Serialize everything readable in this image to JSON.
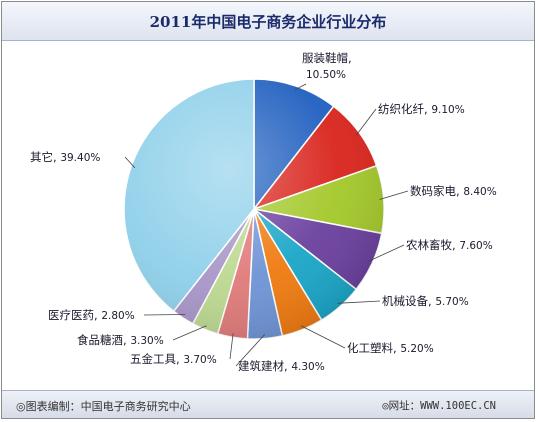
{
  "chart_data": {
    "type": "pie",
    "title": "2011年中国电子商务企业行业分布",
    "slices": [
      {
        "label": "服装鞋帽",
        "value": 10.5,
        "value_text": "10.50%",
        "color": "#1f5fbf"
      },
      {
        "label": "纺织化纤",
        "value": 9.1,
        "value_text": "9.10%",
        "color": "#d9241c"
      },
      {
        "label": "数码家电",
        "value": 8.4,
        "value_text": "8.40%",
        "color": "#a3c82a"
      },
      {
        "label": "农林畜牧",
        "value": 7.6,
        "value_text": "7.60%",
        "color": "#6a3f9e"
      },
      {
        "label": "机械设备",
        "value": 5.7,
        "value_text": "5.70%",
        "color": "#1aa6c8"
      },
      {
        "label": "化工塑料",
        "value": 5.2,
        "value_text": "5.20%",
        "color": "#f07a10"
      },
      {
        "label": "建筑建材",
        "value": 4.3,
        "value_text": "4.30%",
        "color": "#6e94d6"
      },
      {
        "label": "五金工具",
        "value": 3.7,
        "value_text": "3.70%",
        "color": "#e07a7a"
      },
      {
        "label": "食品糖酒",
        "value": 3.3,
        "value_text": "3.30%",
        "color": "#bcd890"
      },
      {
        "label": "医疗医药",
        "value": 2.8,
        "value_text": "2.80%",
        "color": "#a896c8"
      },
      {
        "label": "其它",
        "value": 39.4,
        "value_text": "39.40%",
        "color": "#8fd0ea"
      }
    ],
    "legend": "none"
  },
  "footer": {
    "source": "◎图表编制：中国电子商务研究中心",
    "website": "◎网址：WWW.100EC.CN"
  }
}
